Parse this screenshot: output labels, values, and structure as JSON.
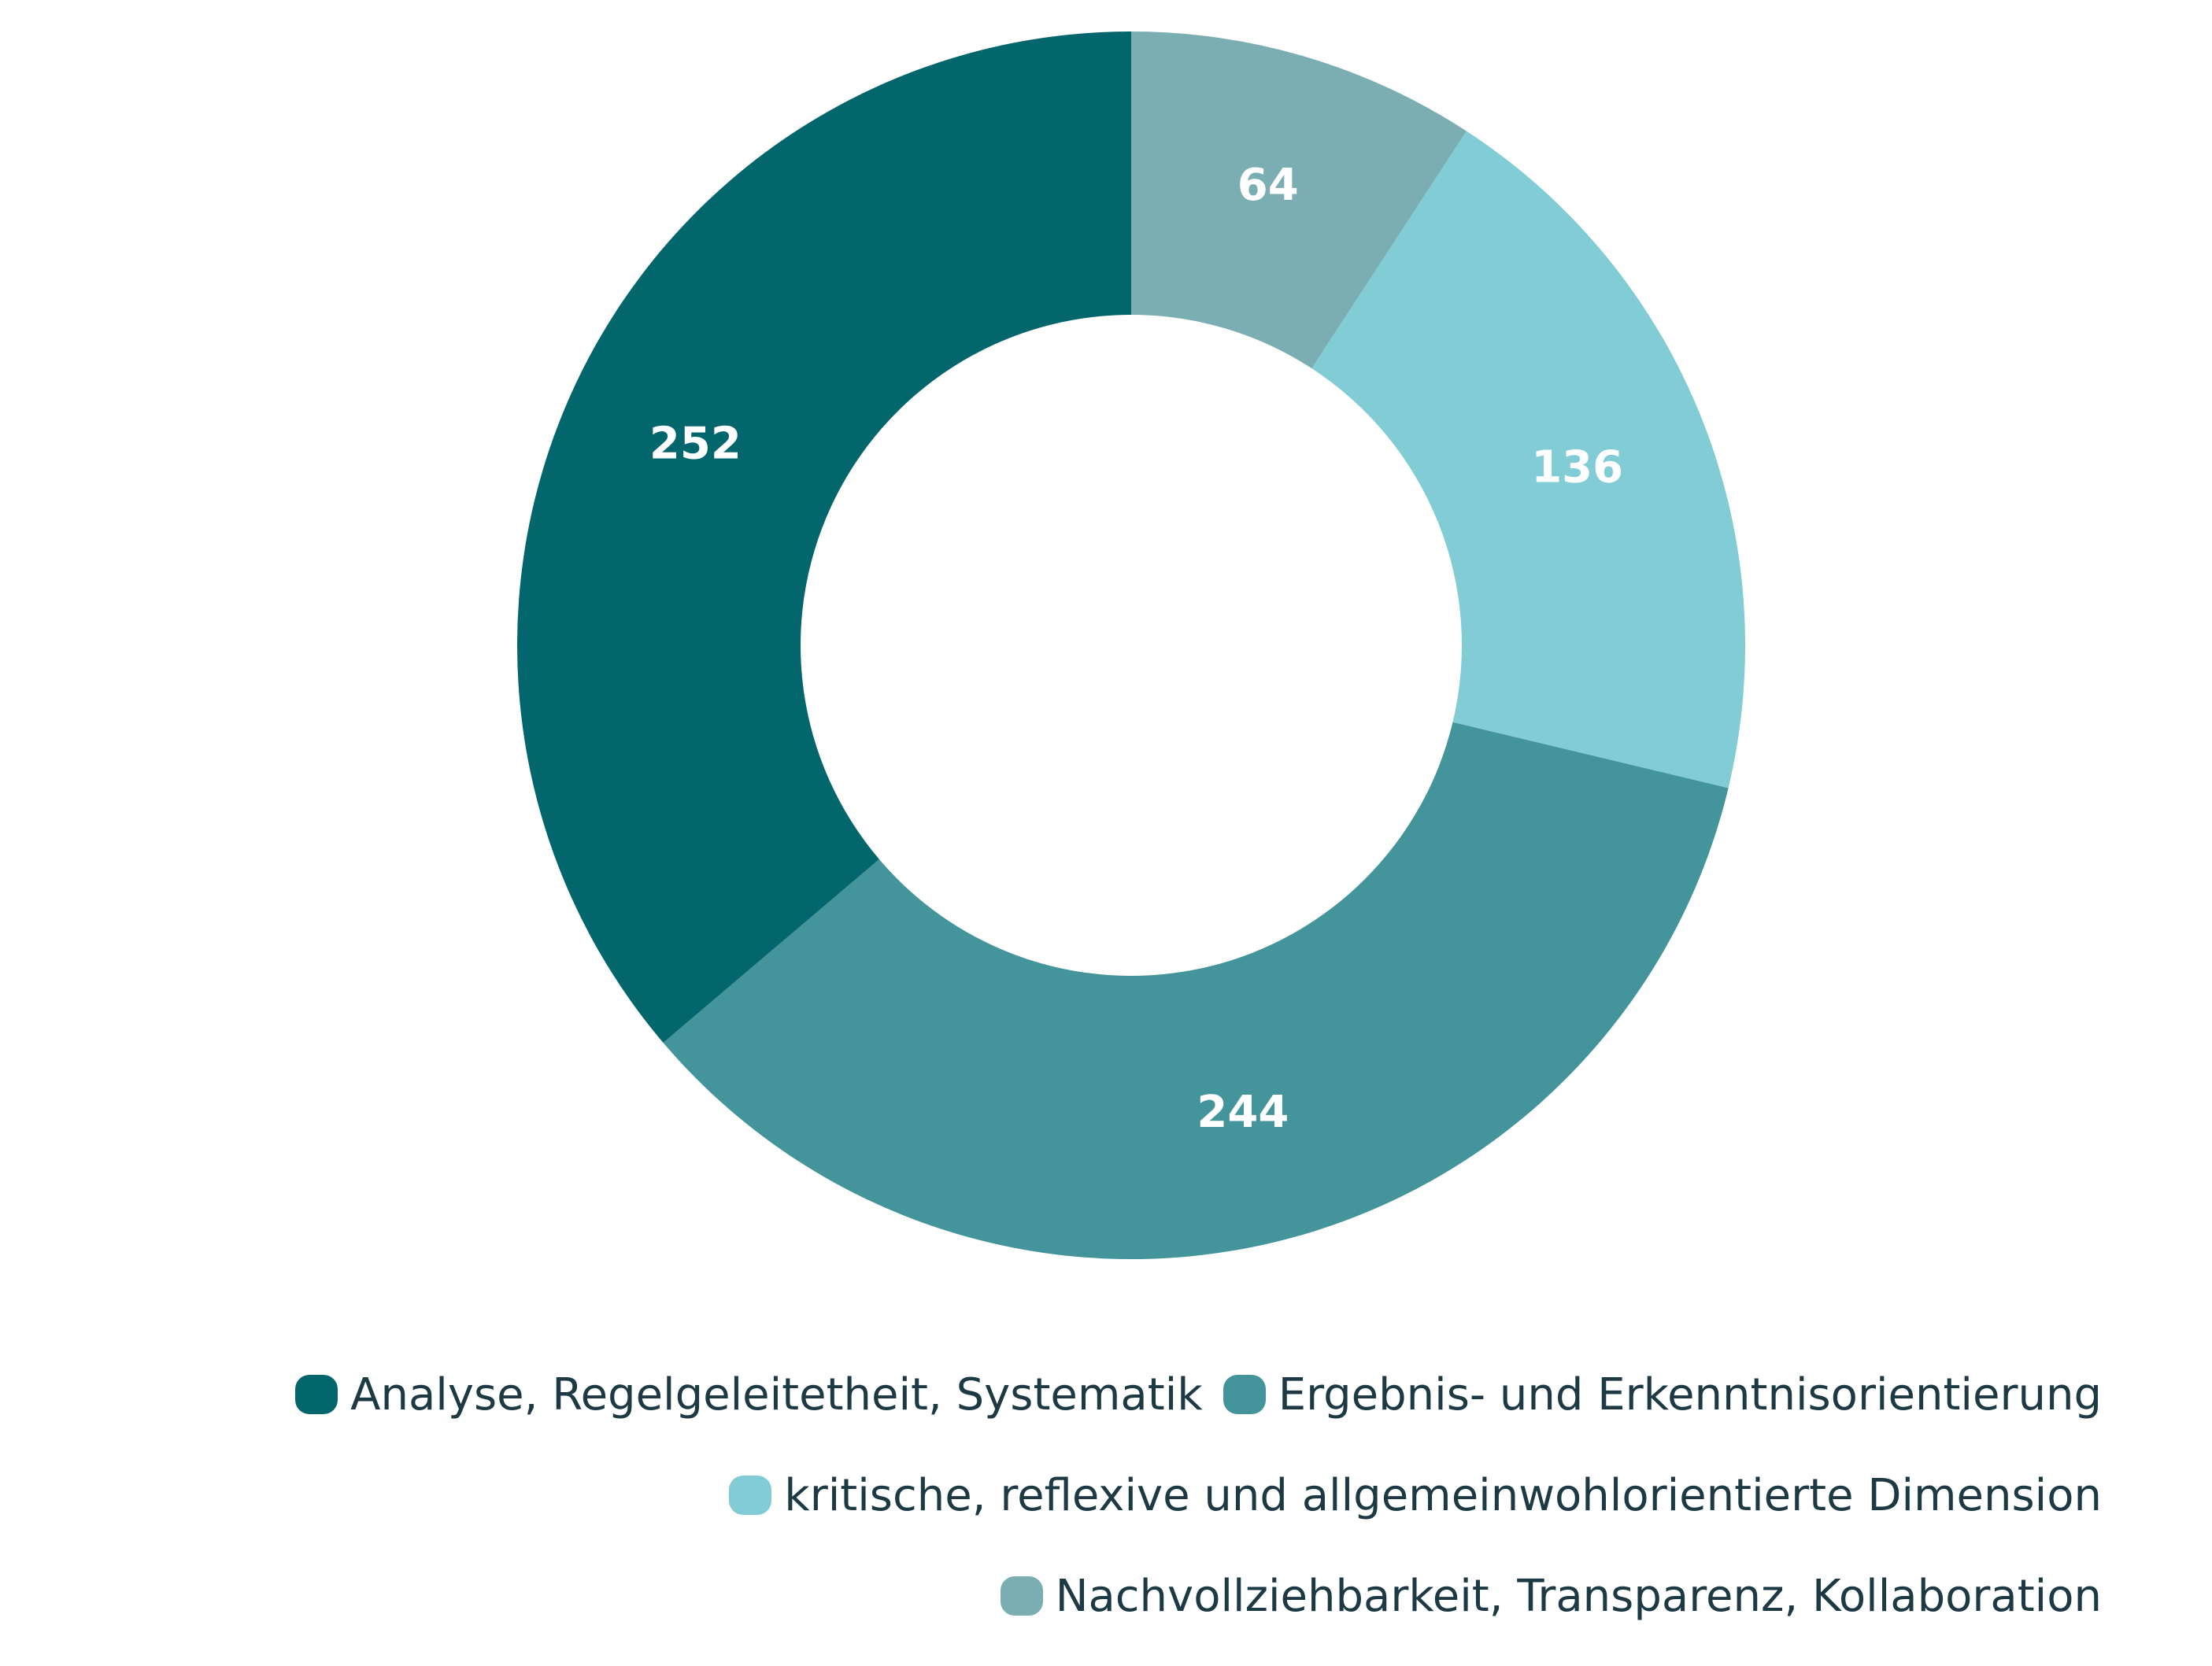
{
  "chart_data": {
    "type": "pie",
    "title": "",
    "series": [
      {
        "values": [
          64,
          136,
          244,
          252
        ],
        "categories": [
          "Nachvollziehbarkeit, Transparenz, Kollaboration",
          "kritische, reflexive und allgemeinwohlorientierte Dimension",
          "Ergebnis- und Erkenntnisorientierung",
          "Analyse, Regelgeleitetheit, Systematik"
        ],
        "colors": [
          "#7aaeb3",
          "#82cdd5",
          "#43949b",
          "#03666d"
        ]
      }
    ],
    "labels": [
      "64",
      "136",
      "244",
      "252"
    ],
    "legend": [
      {
        "label": "Analyse, Regelgeleitetheit, Systematik",
        "color": "#03666d"
      },
      {
        "label": "Ergebnis- und Erkenntnisorientierung",
        "color": "#43949b"
      },
      {
        "label": "kritische, reflexive und allgemeinwohlorientierte Dimension",
        "color": "#82cdd5"
      },
      {
        "label": "Nachvollziehbarkeit, Transparenz, Kollaboration",
        "color": "#7aaeb3"
      }
    ],
    "legend_position": "bottom-right",
    "donut": true
  }
}
